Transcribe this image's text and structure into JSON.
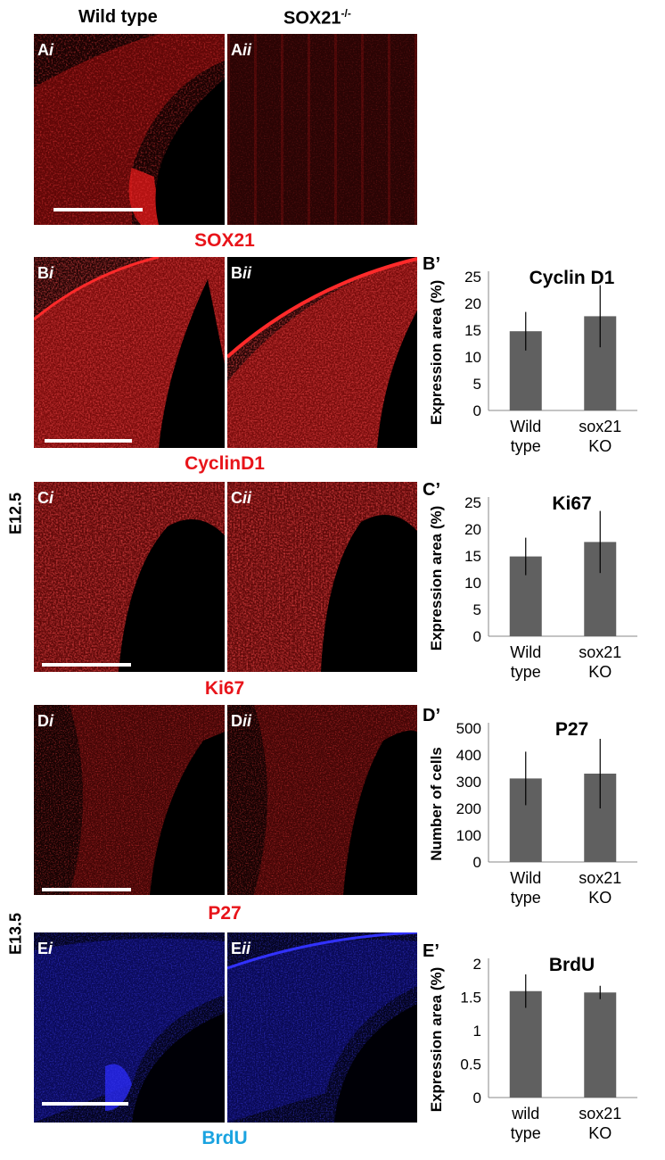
{
  "headers": {
    "wild_type": "Wild type",
    "knockout_base": "SOX21",
    "knockout_sup": "-/-"
  },
  "stages": {
    "e125": "E12.5",
    "e135": "E13.5"
  },
  "colors": {
    "red_stain": "#e8141a",
    "blue_stain": "#1aa3e0",
    "bar": "#606060"
  },
  "rows": [
    {
      "id": "A",
      "label_i": "A",
      "label_ii": "A",
      "stain": "SOX21",
      "stain_color": "#e8141a"
    },
    {
      "id": "B",
      "label_i": "B",
      "label_ii": "B",
      "stain": "CyclinD1",
      "stain_color": "#e8141a"
    },
    {
      "id": "C",
      "label_i": "C",
      "label_ii": "C",
      "stain": "Ki67",
      "stain_color": "#e8141a"
    },
    {
      "id": "D",
      "label_i": "D",
      "label_ii": "D",
      "stain": "P27",
      "stain_color": "#e8141a"
    },
    {
      "id": "E",
      "label_i": "E",
      "label_ii": "E",
      "stain": "BrdU",
      "stain_color": "#1aa3e0"
    }
  ],
  "suffix_i": "i",
  "suffix_ii": "ii",
  "chart_data": [
    {
      "type": "bar",
      "panel_label": "B’",
      "title": "Cyclin D1",
      "ylabel": "Expression area (%)",
      "ylim": [
        0,
        25
      ],
      "yticks": [
        "0",
        "5",
        "10",
        "15",
        "20",
        "25"
      ],
      "categories": [
        [
          "Wild",
          "type"
        ],
        [
          "sox21",
          "KO"
        ]
      ],
      "values": [
        14.8,
        17.6
      ],
      "errors": [
        3.6,
        5.8
      ]
    },
    {
      "type": "bar",
      "panel_label": "C’",
      "title": "Ki67",
      "ylabel": "Expression area (%)",
      "ylim": [
        0,
        25
      ],
      "yticks": [
        "0",
        "5",
        "10",
        "15",
        "20",
        "25"
      ],
      "categories": [
        [
          "Wild",
          "type"
        ],
        [
          "sox21",
          "KO"
        ]
      ],
      "values": [
        14.9,
        17.6
      ],
      "errors": [
        3.5,
        5.8
      ]
    },
    {
      "type": "bar",
      "panel_label": "D’",
      "title": "P27",
      "ylabel": "Number of cells",
      "ylim": [
        0,
        500
      ],
      "yticks": [
        "0",
        "100",
        "200",
        "300",
        "400",
        "500"
      ],
      "categories": [
        [
          "Wild",
          "type"
        ],
        [
          "sox21",
          "KO"
        ]
      ],
      "values": [
        312,
        330
      ],
      "errors": [
        100,
        130
      ]
    },
    {
      "type": "bar",
      "panel_label": "E’",
      "title": "BrdU",
      "ylabel": "Expression area (%)",
      "ylim": [
        0,
        2
      ],
      "yticks": [
        "0",
        "0.5",
        "1",
        "1.5",
        "2"
      ],
      "categories": [
        [
          "wild",
          "type"
        ],
        [
          "sox21",
          "KO"
        ]
      ],
      "values": [
        1.59,
        1.57
      ],
      "errors": [
        0.25,
        0.1
      ]
    }
  ]
}
